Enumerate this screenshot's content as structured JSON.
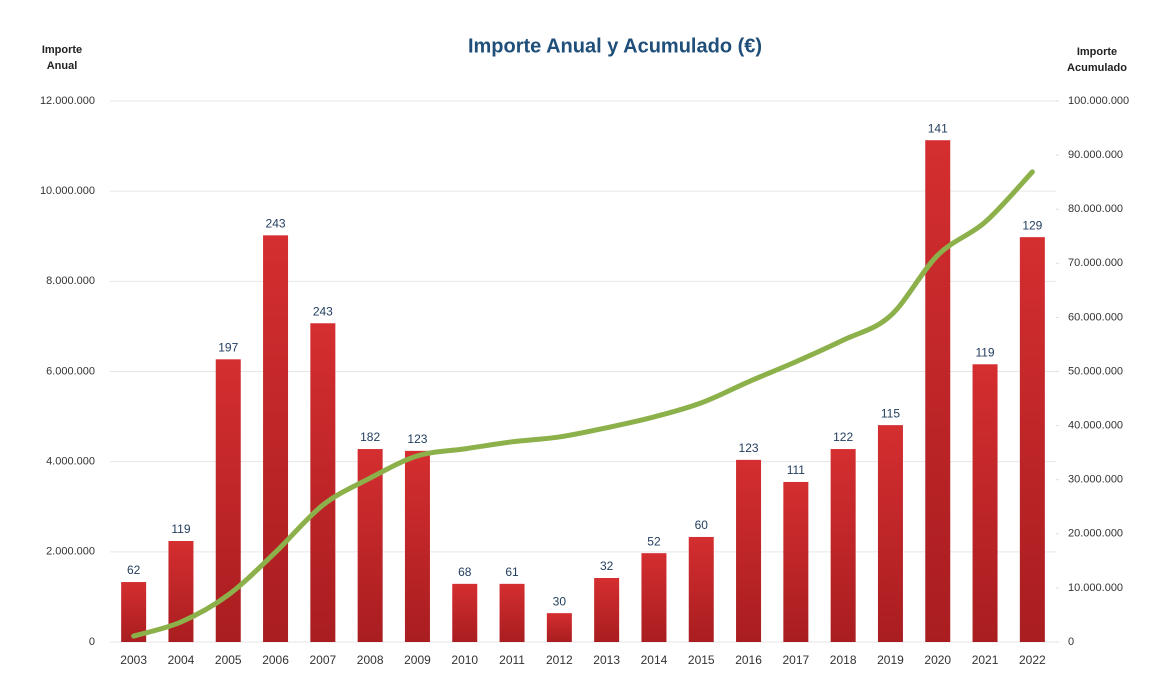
{
  "chart_data": {
    "type": "bar_line",
    "title": "Importe Anual y Acumulado (€)",
    "y_label": "Importe Anual",
    "y2_label": "Importe Acumulado",
    "categories": [
      "2003",
      "2004",
      "2005",
      "2006",
      "2007",
      "2008",
      "2009",
      "2010",
      "2011",
      "2012",
      "2013",
      "2014",
      "2015",
      "2016",
      "2017",
      "2018",
      "2019",
      "2020",
      "2021",
      "2022"
    ],
    "series": [
      {
        "name": "Importe Anual",
        "color": "#c8272b",
        "type": "bar",
        "values": [
          1330000,
          2240000,
          6270000,
          9020000,
          7070000,
          4280000,
          4240000,
          1290000,
          1290000,
          640000,
          1420000,
          1970000,
          2330000,
          4040000,
          3550000,
          4280000,
          4810000,
          11130000,
          6160000,
          8980000
        ],
        "bar_labels": [
          62,
          119,
          197,
          243,
          243,
          182,
          123,
          68,
          61,
          30,
          32,
          52,
          60,
          123,
          111,
          122,
          115,
          141,
          119,
          129
        ]
      },
      {
        "name": "Importe Acumulado",
        "color": "#8cb04a",
        "type": "line",
        "axis": "y2",
        "values": [
          1100000,
          3700000,
          8700000,
          16600000,
          25300000,
          30300000,
          34400000,
          35700000,
          37000000,
          37900000,
          39600000,
          41600000,
          44200000,
          48100000,
          51800000,
          55800000,
          60300000,
          71500000,
          77600000,
          86900000
        ]
      }
    ],
    "ylim": [
      0,
      12000000
    ],
    "yticks": [
      0,
      {
        "value": 2000000,
        "label": "2.000.000"
      },
      {
        "value": 4000000,
        "label": "4.000.000"
      },
      {
        "value": 6000000,
        "label": "6.000.000"
      },
      {
        "value": 8000000,
        "label": "8.000.000"
      },
      {
        "value": 10000000,
        "label": "10.000.000"
      },
      {
        "value": 12000000,
        "label": "12.000.000"
      }
    ],
    "y2lim": [
      0,
      100000000
    ],
    "y2ticks": [
      0,
      {
        "value": 10000000,
        "label": "10.000.000"
      },
      {
        "value": 20000000,
        "label": "20.000.000"
      },
      {
        "value": 30000000,
        "label": "30.000.000"
      },
      {
        "value": 40000000,
        "label": "40.000.000"
      },
      {
        "value": 50000000,
        "label": "50.000.000"
      },
      {
        "value": 60000000,
        "label": "60.000.000"
      },
      {
        "value": 70000000,
        "label": "70.000.000"
      },
      {
        "value": 80000000,
        "label": "80.000.000"
      },
      {
        "value": 90000000,
        "label": "90.000.000"
      },
      {
        "value": 100000000,
        "label": "100.000.000"
      }
    ],
    "grid": true
  }
}
